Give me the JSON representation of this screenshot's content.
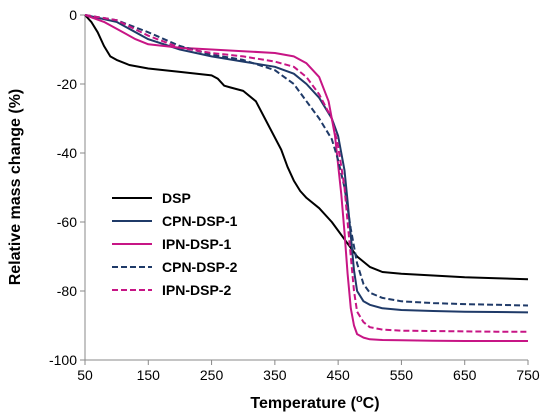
{
  "chart_data": {
    "type": "line",
    "xlabel_main": "Temperature (",
    "xlabel_sup": "o",
    "xlabel_end": "C)",
    "ylabel": "Relative mass change (%)",
    "xlim": [
      50,
      750
    ],
    "ylim": [
      -100,
      0
    ],
    "x_ticks": [
      50,
      150,
      250,
      350,
      450,
      550,
      650,
      750
    ],
    "y_ticks": [
      0,
      -20,
      -40,
      -60,
      -80,
      -100
    ],
    "grid": false,
    "legend_position": "bottom-left",
    "series": [
      {
        "name": "DSP",
        "color": "#000000",
        "dash": "solid",
        "x": [
          50,
          60,
          70,
          80,
          90,
          100,
          120,
          150,
          200,
          250,
          260,
          270,
          280,
          300,
          320,
          340,
          360,
          370,
          380,
          390,
          400,
          420,
          440,
          460,
          480,
          500,
          520,
          550,
          600,
          650,
          700,
          750
        ],
        "y": [
          0,
          -2,
          -5,
          -9,
          -12,
          -13,
          -14.5,
          -15.5,
          -16.5,
          -17.5,
          -18.5,
          -20.5,
          -21,
          -22,
          -25,
          -32,
          -39,
          -44,
          -48,
          -51,
          -53,
          -56,
          -60,
          -65,
          -70,
          -73,
          -74.5,
          -75,
          -75.5,
          -76,
          -76.3,
          -76.6
        ]
      },
      {
        "name": "CPN-DSP-1",
        "color": "#1f3a68",
        "dash": "solid",
        "x": [
          50,
          100,
          150,
          200,
          250,
          300,
          350,
          380,
          400,
          420,
          440,
          450,
          460,
          465,
          470,
          475,
          480,
          490,
          500,
          520,
          550,
          600,
          650,
          700,
          750
        ],
        "y": [
          0,
          -2,
          -7,
          -10,
          -12,
          -13.5,
          -15,
          -17,
          -20,
          -24,
          -30,
          -35,
          -45,
          -54,
          -64,
          -74,
          -80,
          -83,
          -84,
          -85,
          -85.5,
          -85.8,
          -86,
          -86.1,
          -86.2
        ]
      },
      {
        "name": "IPN-DSP-1",
        "color": "#c71585",
        "dash": "solid",
        "x": [
          50,
          80,
          100,
          130,
          150,
          200,
          250,
          300,
          350,
          380,
          400,
          420,
          435,
          445,
          455,
          460,
          465,
          470,
          475,
          480,
          490,
          500,
          520,
          550,
          600,
          650,
          700,
          750
        ],
        "y": [
          0,
          -2,
          -4,
          -7,
          -8.5,
          -9.5,
          -10,
          -10.5,
          -11,
          -12,
          -14,
          -18,
          -25,
          -35,
          -52,
          -63,
          -75,
          -85,
          -90,
          -92.5,
          -93.5,
          -94,
          -94.2,
          -94.3,
          -94.4,
          -94.5,
          -94.5,
          -94.5
        ]
      },
      {
        "name": "CPN-DSP-2",
        "color": "#1f3a68",
        "dash": "dashed",
        "x": [
          50,
          100,
          150,
          200,
          250,
          300,
          350,
          380,
          400,
          420,
          440,
          450,
          460,
          470,
          480,
          490,
          500,
          520,
          550,
          600,
          650,
          700,
          750
        ],
        "y": [
          0,
          -1.5,
          -5,
          -9,
          -11.5,
          -13,
          -16,
          -20,
          -25,
          -30,
          -36,
          -42,
          -50,
          -62,
          -72,
          -78,
          -80.5,
          -82,
          -83,
          -83.5,
          -83.8,
          -84,
          -84.2
        ]
      },
      {
        "name": "IPN-DSP-2",
        "color": "#c71585",
        "dash": "dashed",
        "x": [
          50,
          100,
          150,
          200,
          250,
          300,
          350,
          380,
          400,
          420,
          440,
          450,
          460,
          465,
          470,
          475,
          480,
          490,
          500,
          520,
          550,
          600,
          650,
          700,
          750
        ],
        "y": [
          0,
          -1.5,
          -6,
          -9.5,
          -11,
          -12,
          -13.5,
          -15,
          -18,
          -23,
          -30,
          -38,
          -50,
          -60,
          -70,
          -80,
          -86,
          -89,
          -90.5,
          -91.2,
          -91.5,
          -91.6,
          -91.7,
          -91.8,
          -91.8
        ]
      }
    ]
  }
}
